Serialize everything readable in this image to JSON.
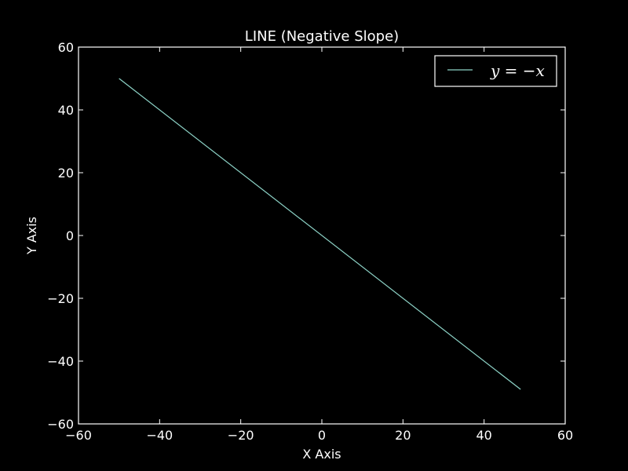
{
  "chart_data": {
    "type": "line",
    "title": "LINE (Negative Slope)",
    "xlabel": "X Axis",
    "ylabel": "Y Axis",
    "xlim": [
      -60,
      60
    ],
    "ylim": [
      -60,
      60
    ],
    "xticks": [
      -60,
      -40,
      -20,
      0,
      20,
      40,
      60
    ],
    "yticks": [
      -60,
      -40,
      -20,
      0,
      20,
      40,
      60
    ],
    "xtick_labels": [
      "−60",
      "−40",
      "−20",
      "0",
      "20",
      "40",
      "60"
    ],
    "ytick_labels": [
      "−60",
      "−40",
      "−20",
      "0",
      "20",
      "40",
      "60"
    ],
    "grid": false,
    "legend_position": "top-right",
    "series": [
      {
        "name": "y = −x",
        "color": "#8dd3c7",
        "x": [
          -50,
          49
        ],
        "y": [
          50,
          -49
        ]
      }
    ]
  },
  "colors": {
    "background": "#000000",
    "axes": "#ffffff"
  }
}
